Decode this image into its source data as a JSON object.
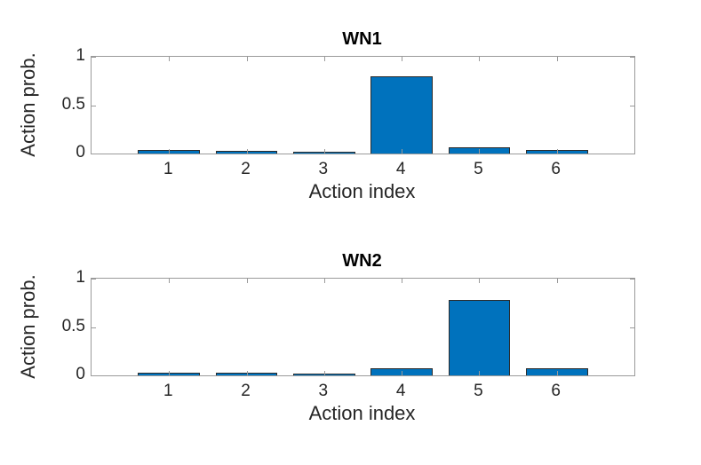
{
  "figure": {
    "background": "#ffffff"
  },
  "colors": {
    "bar_fill": "#0072BD",
    "bar_edge": "#2b2b2b",
    "axis": "#9a9a9a",
    "tick_text": "#262626",
    "label_text": "#262626",
    "title_text": "#000000"
  },
  "chart_data": [
    {
      "type": "bar",
      "title": "WN1",
      "xlabel": "Action index",
      "ylabel": "Action prob.",
      "categories": [
        "1",
        "2",
        "3",
        "4",
        "5",
        "6"
      ],
      "values": [
        0.035,
        0.03,
        0.02,
        0.8,
        0.06,
        0.035
      ],
      "xlim": [
        0,
        7
      ],
      "ylim": [
        0,
        1
      ],
      "yticks": [
        0,
        0.5,
        1
      ],
      "ytick_labels": [
        "0",
        "0.5",
        "1"
      ],
      "bar_width_fraction": 0.8,
      "grid": "off",
      "legend": "none",
      "box": "on"
    },
    {
      "type": "bar",
      "title": "WN2",
      "xlabel": "Action index",
      "ylabel": "Action prob.",
      "categories": [
        "1",
        "2",
        "3",
        "4",
        "5",
        "6"
      ],
      "values": [
        0.025,
        0.03,
        0.02,
        0.075,
        0.78,
        0.075
      ],
      "xlim": [
        0,
        7
      ],
      "ylim": [
        0,
        1
      ],
      "yticks": [
        0,
        0.5,
        1
      ],
      "ytick_labels": [
        "0",
        "0.5",
        "1"
      ],
      "bar_width_fraction": 0.8,
      "grid": "off",
      "legend": "none",
      "box": "on"
    }
  ]
}
